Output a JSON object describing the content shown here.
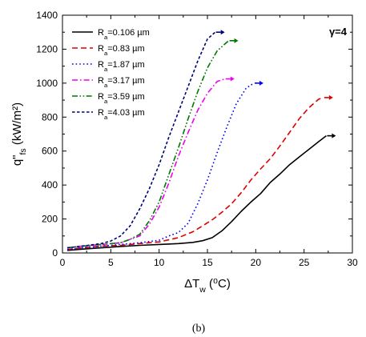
{
  "chart_data": {
    "type": "line",
    "xlabel": "ΔT_w (⁰C)",
    "ylabel": "q\"_fs (kW/m²)",
    "xlim": [
      0,
      30
    ],
    "ylim": [
      0,
      1400
    ],
    "xticks": [
      "0",
      "5",
      "10",
      "15",
      "20",
      "25",
      "30"
    ],
    "yticks": [
      "0",
      "200",
      "400",
      "600",
      "800",
      "1000",
      "1200",
      "1400"
    ],
    "annotation": "γ=4",
    "legend_position": "top-left",
    "grid": false,
    "caption": "(b)",
    "series": [
      {
        "name": "R_a=0.106 µm",
        "color": "#000000",
        "dash": "solid",
        "x": [
          0.5,
          2,
          4,
          6,
          8,
          10,
          12,
          13.5,
          14.5,
          15.5,
          16.5,
          17.5,
          18.5,
          19.5,
          20.5,
          21.5,
          22.5,
          23.5,
          24.5,
          25.5,
          26.5,
          27.3
        ],
        "y": [
          15,
          22,
          30,
          38,
          45,
          50,
          55,
          62,
          72,
          90,
          130,
          185,
          245,
          300,
          350,
          415,
          465,
          520,
          565,
          610,
          655,
          690
        ]
      },
      {
        "name": "R_a=0.83 µm",
        "color": "#dd0000",
        "dash": "long-dash",
        "x": [
          0.5,
          2,
          4,
          6,
          8,
          10,
          12,
          13.5,
          14.5,
          15.5,
          16.5,
          17.5,
          18.5,
          19.5,
          20.5,
          21.5,
          22.5,
          23.5,
          24.5,
          25.5,
          26.5,
          27
        ],
        "y": [
          20,
          30,
          40,
          45,
          55,
          65,
          90,
          125,
          160,
          195,
          240,
          290,
          355,
          430,
          495,
          555,
          630,
          710,
          790,
          855,
          905,
          915
        ]
      },
      {
        "name": "R_a=1.87 µm",
        "color": "#0000ee",
        "dash": "dot",
        "x": [
          0.5,
          2,
          4,
          6,
          8,
          10,
          11,
          12,
          13,
          14,
          15,
          16,
          17,
          18,
          19,
          19.8
        ],
        "y": [
          20,
          30,
          40,
          50,
          60,
          75,
          100,
          120,
          175,
          290,
          430,
          590,
          740,
          880,
          970,
          1000
        ]
      },
      {
        "name": "R_a=3.17 µm",
        "color": "#ee00ee",
        "dash": "dash-dot",
        "x": [
          0.5,
          2,
          4,
          6,
          7,
          8,
          9,
          10,
          11,
          12,
          13,
          14,
          15,
          16,
          16.8
        ],
        "y": [
          30,
          40,
          50,
          60,
          80,
          100,
          170,
          270,
          410,
          570,
          710,
          840,
          940,
          1010,
          1025
        ]
      },
      {
        "name": "R_a=3.59 µm",
        "color": "#007700",
        "dash": "dash-dot-dot",
        "x": [
          0.5,
          2,
          4,
          6,
          7,
          8,
          9,
          10,
          11,
          12,
          13,
          14,
          15,
          16,
          17.2
        ],
        "y": [
          30,
          40,
          50,
          60,
          80,
          110,
          190,
          300,
          460,
          620,
          790,
          950,
          1090,
          1190,
          1250
        ]
      },
      {
        "name": "R_a=4.03 µm",
        "color": "#000077",
        "dash": "short-dash",
        "x": [
          0.5,
          2,
          4,
          5,
          6,
          7,
          8,
          9,
          10,
          11,
          12,
          13,
          14,
          15,
          15.8
        ],
        "y": [
          30,
          40,
          55,
          70,
          100,
          160,
          260,
          380,
          520,
          680,
          830,
          980,
          1130,
          1260,
          1300
        ]
      }
    ]
  }
}
